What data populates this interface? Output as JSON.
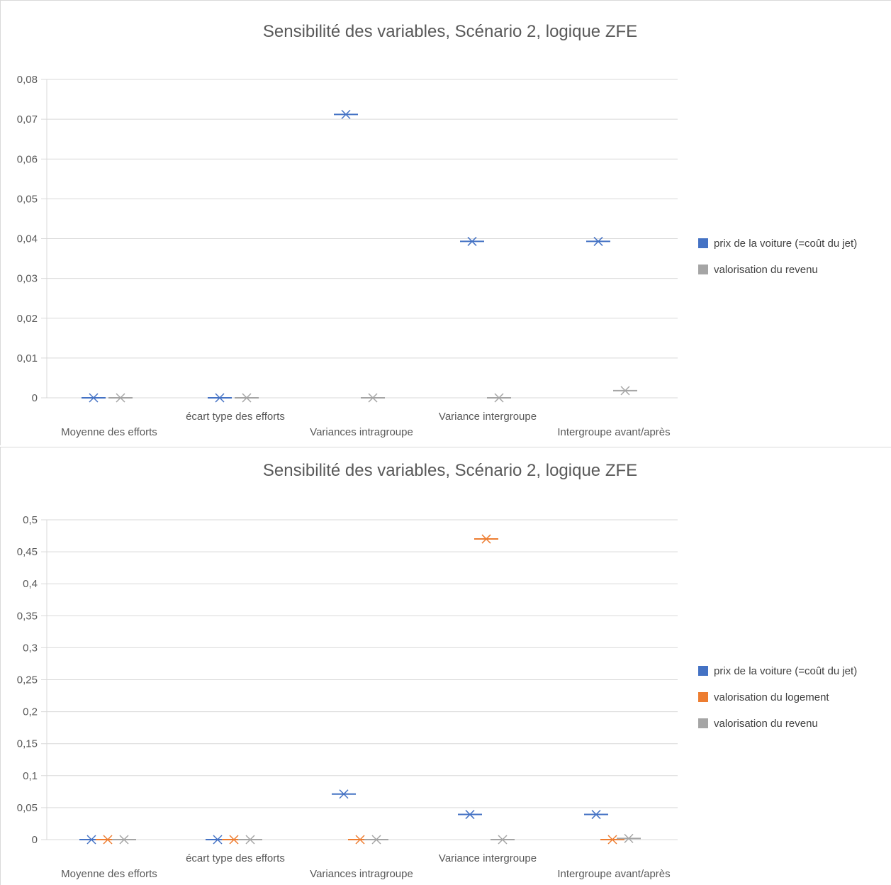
{
  "chart_data": [
    {
      "type": "scatter",
      "title": "Sensibilité des variables, Scénario 2, logique ZFE",
      "categories": [
        "Moyenne des efforts",
        "écart type des efforts",
        "Variances intragroupe",
        "Variance intergroupe",
        "Intergroupe avant/après"
      ],
      "ylim": [
        0,
        0.08
      ],
      "yticks": [
        "0",
        "0,01",
        "0,02",
        "0,03",
        "0,04",
        "0,05",
        "0,06",
        "0,07",
        "0,08"
      ],
      "grid": true,
      "legend_position": "right",
      "series": [
        {
          "name": "prix de la voiture (=coût du jet)",
          "color": "#4472c4",
          "values": [
            0,
            0,
            0.0712,
            0.0393,
            0.0393
          ]
        },
        {
          "name": "valorisation du revenu",
          "color": "#a5a5a5",
          "values": [
            0,
            0,
            0,
            0,
            0.0018
          ]
        }
      ]
    },
    {
      "type": "scatter",
      "title": "Sensibilité des variables, Scénario 2, logique ZFE",
      "categories": [
        "Moyenne des efforts",
        "écart type des efforts",
        "Variances intragroupe",
        "Variance intergroupe",
        "Intergroupe avant/après"
      ],
      "ylim": [
        0,
        0.5
      ],
      "yticks": [
        "0",
        "0,05",
        "0,1",
        "0,15",
        "0,2",
        "0,25",
        "0,3",
        "0,35",
        "0,4",
        "0,45",
        "0,5"
      ],
      "grid": true,
      "legend_position": "right",
      "series": [
        {
          "name": "prix de la voiture (=coût du jet)",
          "color": "#4472c4",
          "values": [
            0,
            0,
            0.0712,
            0.0393,
            0.0393
          ]
        },
        {
          "name": "valorisation du logement",
          "color": "#ed7d31",
          "values": [
            0,
            0,
            0,
            0.47,
            0
          ]
        },
        {
          "name": "valorisation du revenu",
          "color": "#a5a5a5",
          "values": [
            0,
            0,
            0,
            0,
            0.0018
          ]
        }
      ]
    }
  ]
}
